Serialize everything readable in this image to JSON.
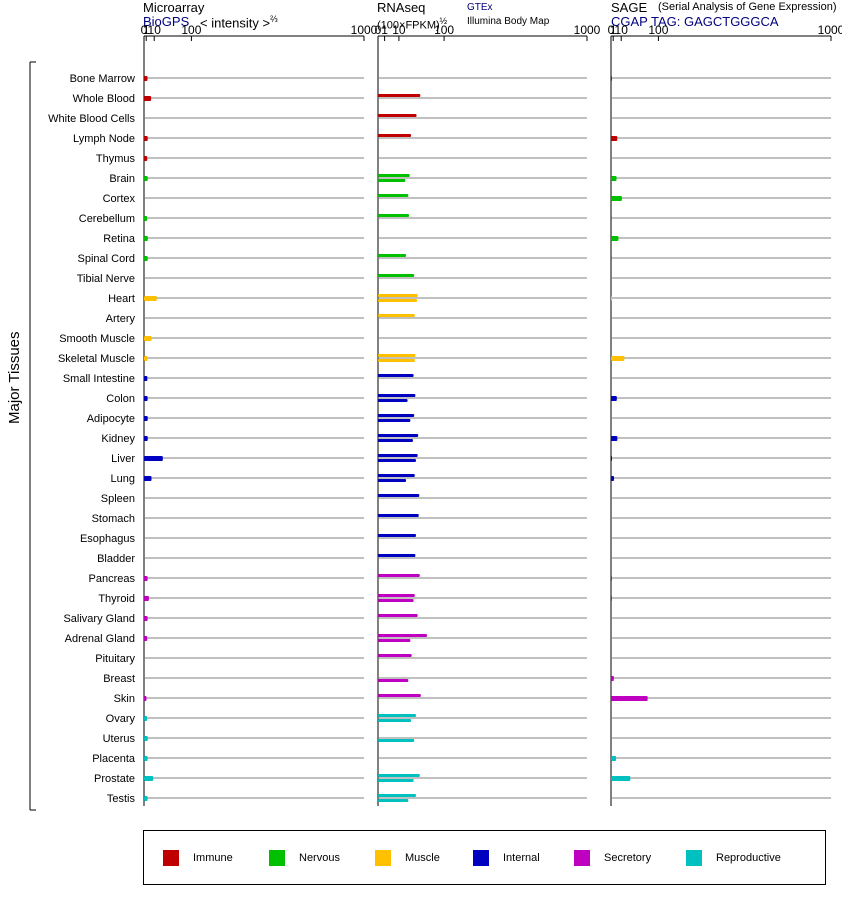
{
  "headers": {
    "microarray": {
      "title": "Microarray",
      "link": "BioGPS",
      "unit": "< intensity >",
      "unit_exp": "⅔"
    },
    "rnaseq": {
      "title": "RNAseq",
      "unit": "(100×FPKM)",
      "unit_exp": "½",
      "link": "GTEx",
      "sub": "Illumina Body Map"
    },
    "sage": {
      "title": "SAGE",
      "subtitle": "(Serial Analysis of Gene Expression)",
      "tag": "CGAP TAG: GAGCTGGGCA"
    }
  },
  "y_axis_label": "Major Tissues",
  "chart_data": {
    "type": "bar",
    "orientation": "horizontal",
    "x_scale": "power",
    "x_ticks": [
      "0",
      "1",
      "10",
      "100",
      "1000"
    ],
    "xlim": [
      0,
      1000
    ],
    "categories": [
      "Bone Marrow",
      "Whole Blood",
      "White Blood Cells",
      "Lymph Node",
      "Thymus",
      "Brain",
      "Cortex",
      "Cerebellum",
      "Retina",
      "Spinal Cord",
      "Tibial Nerve",
      "Heart",
      "Artery",
      "Smooth Muscle",
      "Skeletal Muscle",
      "Small Intestine",
      "Colon",
      "Adipocyte",
      "Kidney",
      "Liver",
      "Lung",
      "Spleen",
      "Stomach",
      "Esophagus",
      "Bladder",
      "Pancreas",
      "Thyroid",
      "Salivary Gland",
      "Adrenal Gland",
      "Pituitary",
      "Breast",
      "Skin",
      "Ovary",
      "Uterus",
      "Placenta",
      "Prostate",
      "Testis"
    ],
    "groups": [
      "Immune",
      "Immune",
      "Immune",
      "Immune",
      "Immune",
      "Nervous",
      "Nervous",
      "Nervous",
      "Nervous",
      "Nervous",
      "Nervous",
      "Muscle",
      "Muscle",
      "Muscle",
      "Muscle",
      "Internal",
      "Internal",
      "Internal",
      "Internal",
      "Internal",
      "Internal",
      "Internal",
      "Internal",
      "Internal",
      "Internal",
      "Secretory",
      "Secretory",
      "Secretory",
      "Secretory",
      "Secretory",
      "Secretory",
      "Secretory",
      "Reproductive",
      "Reproductive",
      "Reproductive",
      "Reproductive",
      "Reproductive"
    ],
    "group_colors": {
      "Immune": "#c00000",
      "Nervous": "#00c000",
      "Muscle": "#ffc000",
      "Internal": "#0000c0",
      "Secretory": "#c000c0",
      "Reproductive": "#00c0c0"
    },
    "legend": [
      "Immune",
      "Nervous",
      "Muscle",
      "Internal",
      "Secretory",
      "Reproductive"
    ],
    "series": [
      {
        "panel": "microarray",
        "values": [
          2.0,
          5.8,
          null,
          2.2,
          1.8,
          2.2,
          null,
          1.7,
          2.3,
          2.2,
          null,
          14,
          null,
          6.5,
          2.1,
          1.9,
          2.1,
          2.2,
          2.2,
          25,
          6.3,
          null,
          null,
          null,
          null,
          2.1,
          3.3,
          2.1,
          1.8,
          null,
          null,
          1.2,
          1.6,
          2.2,
          2.1,
          8.5,
          2.1
        ]
      },
      {
        "panel": "rnaseq_gtex",
        "values": [
          null,
          41,
          34,
          25,
          null,
          23,
          21,
          22,
          null,
          18,
          30,
          36,
          31,
          null,
          32,
          29,
          32,
          30,
          37,
          36,
          31,
          39,
          38,
          33,
          32,
          40,
          31,
          36,
          55,
          26,
          null,
          42,
          33,
          null,
          null,
          40,
          33
        ]
      },
      {
        "panel": "rnaseq_ibm",
        "values": [
          null,
          null,
          null,
          null,
          null,
          17,
          null,
          null,
          null,
          null,
          null,
          35,
          null,
          null,
          31,
          null,
          20,
          24,
          28,
          33,
          18,
          null,
          null,
          null,
          null,
          null,
          29,
          null,
          24,
          null,
          21,
          null,
          25,
          30,
          null,
          29,
          21
        ]
      },
      {
        "panel": "sage",
        "values": [
          0.05,
          null,
          null,
          4.8,
          null,
          4.0,
          11,
          0.05,
          6.2,
          0.05,
          null,
          0.02,
          null,
          null,
          15,
          null,
          4.3,
          null,
          4.9,
          0.1,
          1.6,
          null,
          null,
          null,
          null,
          0.05,
          0.05,
          null,
          null,
          null,
          1.5,
          68,
          null,
          null,
          3.5,
          26,
          null
        ]
      }
    ]
  }
}
